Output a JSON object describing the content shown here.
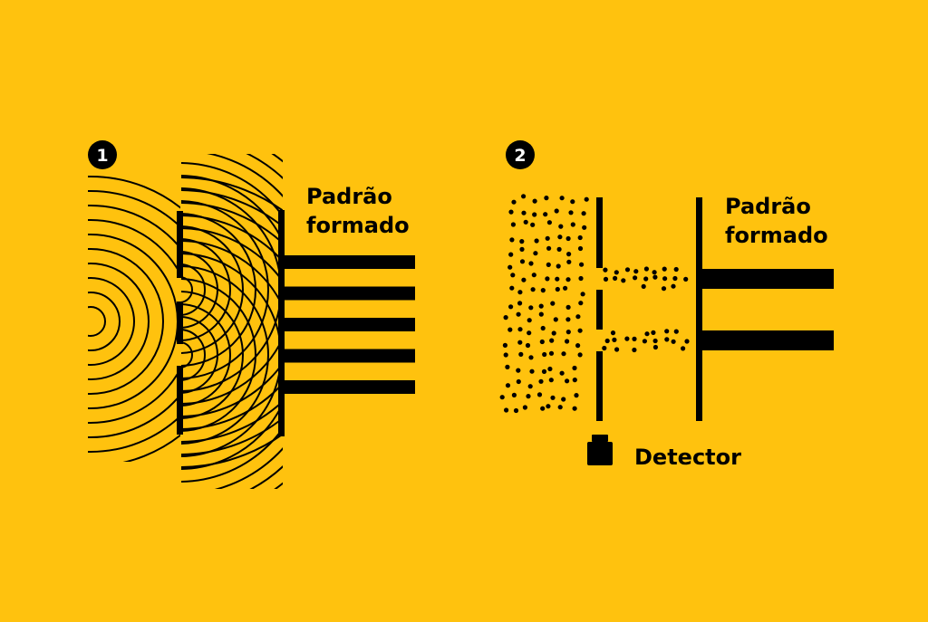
{
  "colors": {
    "background": "#FFC20E",
    "ink": "#000000",
    "badge_text": "#FFFFFF"
  },
  "panel1": {
    "badge": "1",
    "label_line1": "Padrão",
    "label_line2": "formado",
    "pattern_band_count": 5
  },
  "panel2": {
    "badge": "2",
    "label_line1": "Padrão",
    "label_line2": "formado",
    "pattern_band_count": 2,
    "detector_label": "Detector",
    "detector_icon": "detector-icon"
  }
}
